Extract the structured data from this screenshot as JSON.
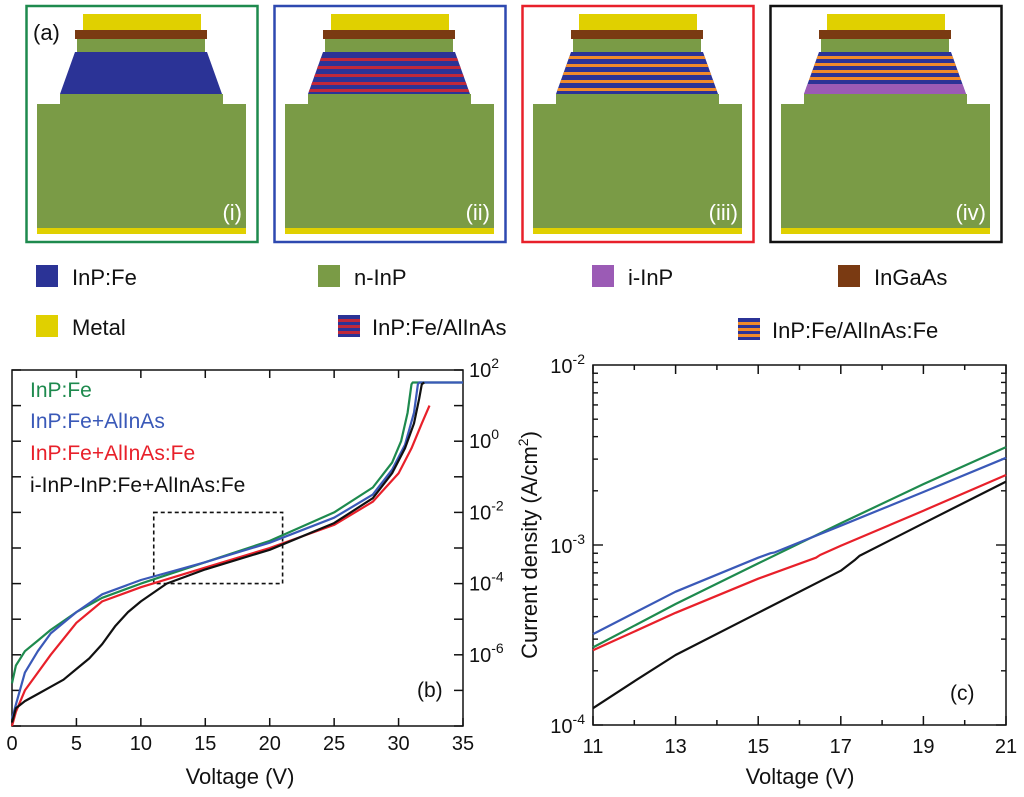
{
  "panel_a": {
    "label": "(a)",
    "panels": [
      {
        "label": "(i)",
        "frame_color": "#1e8a4e",
        "stack": "InP:Fe"
      },
      {
        "label": "(ii)",
        "frame_color": "#2e49b0",
        "stack": "InP:Fe/AlInAs"
      },
      {
        "label": "(iii)",
        "frame_color": "#e8202a",
        "stack": "InP:Fe/AlInAs:Fe"
      },
      {
        "label": "(iv)",
        "frame_color": "#111111",
        "stack": "i-InP + InP:Fe/AlInAs:Fe"
      }
    ]
  },
  "legend": {
    "items": [
      {
        "label": "InP:Fe",
        "color": "#2b3396"
      },
      {
        "label": "n-InP",
        "color": "#7a9b46"
      },
      {
        "label": "i-InP",
        "color": "#9b5bb5"
      },
      {
        "label": "InGaAs",
        "color": "#7a3a12"
      },
      {
        "label": "Metal",
        "color": "#e0d000"
      },
      {
        "label": "InP:Fe/AlInAs",
        "color": "#2b3396",
        "stripe": "#c0283a"
      },
      {
        "label": "InP:Fe/AlInAs:Fe",
        "color": "#2b3396",
        "stripe": "#f08a2a"
      }
    ]
  },
  "chart_data": [
    {
      "type": "line",
      "panel_label": "(b)",
      "xlabel": "Voltage (V)",
      "ylabel": "",
      "y_scale": "log",
      "xlim": [
        0,
        35
      ],
      "ylim_log10": [
        -8,
        2
      ],
      "x_ticks": [
        "0",
        "5",
        "10",
        "15",
        "20",
        "25",
        "30",
        "35"
      ],
      "y_ticks": [
        {
          "base": "10",
          "exp": "2"
        },
        {
          "base": "10",
          "exp": "0"
        },
        {
          "base": "10",
          "exp": "-2"
        },
        {
          "base": "10",
          "exp": "-4"
        },
        {
          "base": "10",
          "exp": "-6"
        }
      ],
      "legend_position": "top-left",
      "zoom_box": {
        "x": [
          11,
          21
        ],
        "y": [
          0.0001,
          0.01
        ]
      },
      "series": [
        {
          "name": "InP:Fe",
          "color": "#1e8a4e",
          "x": [
            0,
            0.3,
            1,
            2,
            3,
            5,
            7,
            10,
            15,
            20,
            25,
            28,
            29.5,
            30.2,
            30.7,
            31,
            31.1,
            31.2,
            33,
            35
          ],
          "y": [
            -6.8,
            -6.3,
            -5.9,
            -5.6,
            -5.3,
            -4.8,
            -4.4,
            -4.0,
            -3.4,
            -2.8,
            -2.0,
            -1.3,
            -0.6,
            0.0,
            0.8,
            1.6,
            1.65,
            1.65,
            1.65,
            1.65
          ]
        },
        {
          "name": "InP:Fe+AlInAs",
          "color": "#3a59b8",
          "x": [
            0,
            0.3,
            1,
            2,
            3,
            5,
            7,
            10,
            15,
            20,
            25,
            28,
            29.5,
            30.5,
            31.2,
            31.5,
            31.6,
            33,
            35
          ],
          "y": [
            -7.8,
            -7.4,
            -6.5,
            -5.9,
            -5.4,
            -4.8,
            -4.3,
            -3.9,
            -3.4,
            -2.85,
            -2.15,
            -1.5,
            -0.8,
            -0.1,
            0.8,
            1.6,
            1.65,
            1.65,
            1.65
          ]
        },
        {
          "name": "InP:Fe+AlInAs:Fe",
          "color": "#e8202a",
          "x": [
            0,
            0.3,
            1,
            2,
            3,
            5,
            7,
            10,
            15,
            20,
            25,
            28,
            30,
            31,
            31.8,
            32.4
          ],
          "y": [
            -8.0,
            -7.6,
            -7.0,
            -6.5,
            -6.0,
            -5.1,
            -4.5,
            -4.1,
            -3.55,
            -3.0,
            -2.35,
            -1.7,
            -0.9,
            -0.2,
            0.5,
            1.0
          ]
        },
        {
          "name": "i-InP-InP:Fe+AlInAs:Fe",
          "color": "#111111",
          "x": [
            0,
            0.3,
            1,
            2,
            3,
            4,
            5,
            6,
            7,
            8,
            9,
            10,
            12,
            15,
            20,
            25,
            28,
            29.5,
            30.5,
            31.2,
            31.6,
            31.8,
            32
          ],
          "y": [
            -7.9,
            -7.5,
            -7.3,
            -7.1,
            -6.9,
            -6.7,
            -6.4,
            -6.1,
            -5.7,
            -5.2,
            -4.8,
            -4.5,
            -4.0,
            -3.6,
            -3.05,
            -2.3,
            -1.6,
            -0.9,
            -0.2,
            0.5,
            1.2,
            1.6,
            1.65
          ]
        }
      ]
    },
    {
      "type": "line",
      "panel_label": "(c)",
      "xlabel": "Voltage (V)",
      "ylabel": "Current density (A/cm²)",
      "ylabel_parts": {
        "pre": "Current density (A/cm",
        "sup": "2",
        "post": ")"
      },
      "y_scale": "log",
      "xlim": [
        11,
        21
      ],
      "ylim": [
        0.0001,
        0.01
      ],
      "x_ticks": [
        "11",
        "13",
        "15",
        "17",
        "19",
        "21"
      ],
      "y_ticks": [
        {
          "base": "10",
          "exp": "-2"
        },
        {
          "base": "10",
          "exp": "-3"
        },
        {
          "base": "10",
          "exp": "-4"
        }
      ],
      "series": [
        {
          "name": "InP:Fe",
          "color": "#1e8a4e",
          "x": [
            11,
            13,
            15,
            17,
            19,
            21
          ],
          "y": [
            0.00027,
            0.00047,
            0.00079,
            0.00132,
            0.00218,
            0.0035
          ]
        },
        {
          "name": "InP:Fe+AlInAs",
          "color": "#3a59b8",
          "x": [
            11,
            13,
            15,
            15.3,
            15.4,
            17,
            19,
            21
          ],
          "y": [
            0.00032,
            0.00055,
            0.00085,
            0.0009,
            0.00091,
            0.00128,
            0.00197,
            0.00305
          ]
        },
        {
          "name": "InP:Fe+AlInAs:Fe",
          "color": "#e8202a",
          "x": [
            11,
            13,
            15,
            16.4,
            16.5,
            17,
            19,
            21
          ],
          "y": [
            0.00026,
            0.00042,
            0.00065,
            0.00085,
            0.00088,
            0.00099,
            0.00155,
            0.00245
          ]
        },
        {
          "name": "i-InP-InP:Fe+AlInAs:Fe",
          "color": "#111111",
          "x": [
            11,
            12,
            13,
            15,
            17,
            17.35,
            17.45,
            19,
            21
          ],
          "y": [
            0.000124,
            0.000175,
            0.000245,
            0.00042,
            0.00072,
            0.00083,
            0.00087,
            0.00132,
            0.00225
          ]
        }
      ]
    }
  ]
}
